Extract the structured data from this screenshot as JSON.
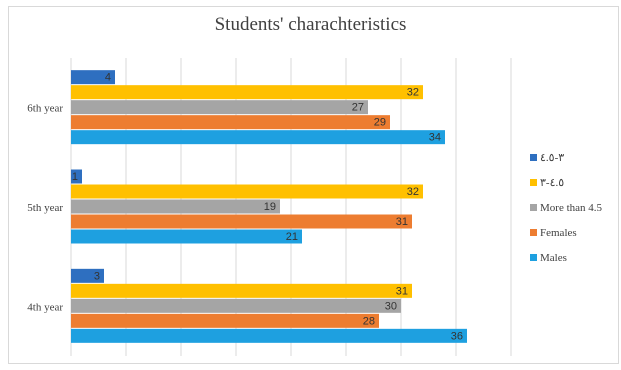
{
  "chart_data": {
    "type": "bar",
    "orientation": "horizontal",
    "title": "Students' charachteristics",
    "categories": [
      "6th year",
      "5th year",
      "4th year"
    ],
    "xlim": [
      0,
      40
    ],
    "grid": true,
    "legend_position": "right",
    "series": [
      {
        "name": "٣-٤.٥",
        "color": "#2e6fc0",
        "values": [
          4,
          1,
          3
        ]
      },
      {
        "name": "٤.٥-٣",
        "color": "#ffc000",
        "values": [
          32,
          32,
          31
        ]
      },
      {
        "name": "More than 4.5",
        "color": "#a5a5a5",
        "values": [
          27,
          19,
          30
        ]
      },
      {
        "name": "Females",
        "color": "#ed7d31",
        "values": [
          29,
          31,
          28
        ]
      },
      {
        "name": "Males",
        "color": "#1ea0e0",
        "values": [
          34,
          21,
          36
        ]
      }
    ]
  }
}
